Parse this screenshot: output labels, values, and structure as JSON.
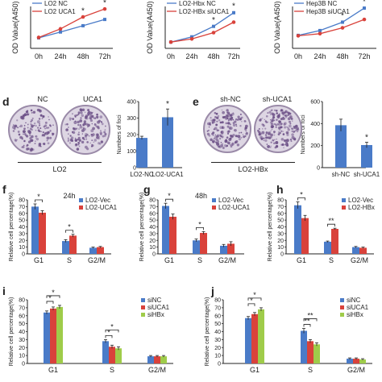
{
  "colors": {
    "blue": "#4a7bc8",
    "red": "#d9423b",
    "green": "#9fcc4a",
    "axis": "#222222",
    "plate_bg": "#ddd6e3",
    "plate_foci": "#6b4f86"
  },
  "panel_d": {
    "letter": "d",
    "plate_labels": [
      "NC",
      "UCA1"
    ],
    "group_label": "LO2"
  },
  "panel_e": {
    "letter": "e",
    "plate_labels": [
      "sh-NC",
      "sh-UCA1"
    ],
    "group_label": "LO2-HBx"
  },
  "chart_data": [
    {
      "id": "top-left",
      "type": "line",
      "ylabel": "OD Value(A450)",
      "categories": [
        "0h",
        "24h",
        "48h",
        "72h"
      ],
      "ylim": [
        0,
        2
      ],
      "series": [
        {
          "name": "LO2 NC",
          "color": "#4a7bc8",
          "values": [
            0.5,
            0.78,
            1.08,
            1.38
          ],
          "errors": [
            0.03,
            0.04,
            0.05,
            0.06
          ]
        },
        {
          "name": "LO2 UCA1",
          "color": "#d9423b",
          "values": [
            0.52,
            0.93,
            1.5,
            1.88
          ],
          "errors": [
            0.03,
            0.05,
            0.06,
            0.07
          ]
        }
      ],
      "stars": [
        "",
        "",
        "*",
        "*"
      ]
    },
    {
      "id": "top-middle",
      "type": "line",
      "ylabel": "OD Value(A450)",
      "categories": [
        "0h",
        "24h",
        "48h",
        "72h"
      ],
      "ylim": [
        0,
        2
      ],
      "series": [
        {
          "name": "LO2-Hbx NC",
          "color": "#4a7bc8",
          "values": [
            0.3,
            0.55,
            1.05,
            1.7
          ],
          "errors": [
            0.02,
            0.04,
            0.06,
            0.08
          ]
        },
        {
          "name": "LO2-HBx siUCA1",
          "color": "#d9423b",
          "values": [
            0.3,
            0.45,
            0.75,
            1.25
          ],
          "errors": [
            0.02,
            0.03,
            0.05,
            0.06
          ]
        }
      ],
      "stars": [
        "",
        "",
        "*",
        "*"
      ]
    },
    {
      "id": "top-right",
      "type": "line",
      "ylabel": "OD Value(A450)",
      "categories": [
        "0h",
        "24h",
        "48h",
        "72h"
      ],
      "ylim": [
        0,
        2
      ],
      "series": [
        {
          "name": "Hep3B NC",
          "color": "#4a7bc8",
          "values": [
            0.62,
            0.85,
            1.25,
            1.92
          ],
          "errors": [
            0.03,
            0.04,
            0.08,
            0.08
          ]
        },
        {
          "name": "Hep3B siUCA1",
          "color": "#d9423b",
          "values": [
            0.6,
            0.7,
            0.98,
            1.38
          ],
          "errors": [
            0.03,
            0.04,
            0.05,
            0.06
          ]
        }
      ],
      "stars": [
        "",
        "",
        "*",
        "*"
      ]
    },
    {
      "id": "d-bar",
      "type": "bar",
      "ylabel": "Numbers of foci",
      "categories": [
        "LO2-NC",
        "LO2-UCA1"
      ],
      "ylim": [
        0,
        400
      ],
      "yticks": [
        0,
        100,
        200,
        300,
        400
      ],
      "series": [
        {
          "name": "",
          "color": "#4a7bc8",
          "values": [
            180,
            305
          ],
          "errors": [
            10,
            50
          ]
        }
      ],
      "stars": [
        "",
        "*"
      ]
    },
    {
      "id": "e-bar",
      "type": "bar",
      "ylabel": "Numbers of foci",
      "categories": [
        "sh-NC",
        "sh-UCA1"
      ],
      "ylim": [
        0,
        600
      ],
      "yticks": [
        0,
        200,
        400,
        600
      ],
      "series": [
        {
          "name": "",
          "color": "#4a7bc8",
          "values": [
            385,
            205
          ],
          "errors": [
            55,
            25
          ]
        }
      ],
      "stars": [
        "",
        "*"
      ]
    },
    {
      "id": "f",
      "letter": "f",
      "type": "bar",
      "title": "24h",
      "ylabel": "Relative cell percentage(%)",
      "categories": [
        "G1",
        "S",
        "G2/M"
      ],
      "ylim": [
        0,
        80
      ],
      "yticks": [
        0,
        10,
        20,
        30,
        40,
        50,
        60,
        70,
        80
      ],
      "series": [
        {
          "name": "LO2-Vec",
          "color": "#4a7bc8",
          "values": [
            70,
            19,
            9
          ],
          "errors": [
            4,
            2,
            1
          ]
        },
        {
          "name": "LO2-UCA1",
          "color": "#d9423b",
          "values": [
            61,
            27,
            10
          ],
          "errors": [
            3,
            2,
            1
          ]
        }
      ],
      "brackets": [
        {
          "cat": 0,
          "label": "*"
        },
        {
          "cat": 1,
          "label": "*"
        }
      ]
    },
    {
      "id": "g",
      "letter": "g",
      "type": "bar",
      "title": "48h",
      "ylabel": "Relative cell percentage(%)",
      "categories": [
        "G1",
        "S",
        "G2/M"
      ],
      "ylim": [
        0,
        80
      ],
      "yticks": [
        0,
        10,
        20,
        30,
        40,
        50,
        60,
        70,
        80
      ],
      "series": [
        {
          "name": "LO2-Vec",
          "color": "#4a7bc8",
          "values": [
            71,
            20,
            12
          ],
          "errors": [
            4,
            2,
            2
          ]
        },
        {
          "name": "LO2-UCA1",
          "color": "#d9423b",
          "values": [
            55,
            31,
            15
          ],
          "errors": [
            4,
            2,
            3
          ]
        }
      ],
      "brackets": [
        {
          "cat": 0,
          "label": "*"
        },
        {
          "cat": 1,
          "label": "*"
        }
      ]
    },
    {
      "id": "h",
      "letter": "h",
      "type": "bar",
      "ylabel": "Relative cell percentage(%)",
      "categories": [
        "G1",
        "S",
        "G2/M"
      ],
      "ylim": [
        0,
        80
      ],
      "yticks": [
        0,
        10,
        20,
        30,
        40,
        50,
        60,
        70,
        80
      ],
      "series": [
        {
          "name": "LO2-Vec",
          "color": "#4a7bc8",
          "values": [
            72,
            18,
            10
          ],
          "errors": [
            5,
            1,
            1
          ]
        },
        {
          "name": "LO2-HBx",
          "color": "#d9423b",
          "values": [
            53,
            37,
            9
          ],
          "errors": [
            4,
            1,
            1
          ]
        }
      ],
      "brackets": [
        {
          "cat": 0,
          "label": "*"
        },
        {
          "cat": 1,
          "label": "**"
        }
      ]
    },
    {
      "id": "i",
      "letter": "i",
      "type": "bar",
      "ylabel": "Relative cell percentage(%)",
      "categories": [
        "G1",
        "S",
        "G2/M"
      ],
      "ylim": [
        0,
        80
      ],
      "yticks": [
        0,
        10,
        20,
        30,
        40,
        50,
        60,
        70,
        80
      ],
      "series": [
        {
          "name": "siNC",
          "color": "#4a7bc8",
          "values": [
            64,
            28,
            9
          ],
          "errors": [
            2,
            2,
            1
          ]
        },
        {
          "name": "siUCA1",
          "color": "#d9423b",
          "values": [
            69,
            21,
            9
          ],
          "errors": [
            2,
            2,
            1
          ]
        },
        {
          "name": "siHBx",
          "color": "#9fcc4a",
          "values": [
            71,
            19,
            9
          ],
          "errors": [
            2,
            2,
            1
          ]
        }
      ],
      "brackets": [
        {
          "cat": 0,
          "from": 0,
          "to": 1,
          "label": "*"
        },
        {
          "cat": 0,
          "from": 0,
          "to": 2,
          "label": "*"
        },
        {
          "cat": 1,
          "from": 0,
          "to": 1,
          "label": "*"
        },
        {
          "cat": 1,
          "from": 0,
          "to": 2,
          "label": "*"
        }
      ]
    },
    {
      "id": "j",
      "letter": "j",
      "type": "bar",
      "ylabel": "Relative cell percentage(%)",
      "categories": [
        "G1",
        "S",
        "G2/M"
      ],
      "ylim": [
        0,
        80
      ],
      "yticks": [
        0,
        10,
        20,
        30,
        40,
        50,
        60,
        70,
        80
      ],
      "series": [
        {
          "name": "siNC",
          "color": "#4a7bc8",
          "values": [
            57,
            41,
            6
          ],
          "errors": [
            2,
            3,
            1
          ]
        },
        {
          "name": "siUCA1",
          "color": "#d9423b",
          "values": [
            62,
            28,
            6
          ],
          "errors": [
            2,
            2,
            1
          ]
        },
        {
          "name": "siHBx",
          "color": "#9fcc4a",
          "values": [
            68,
            24,
            5
          ],
          "errors": [
            2,
            2,
            1
          ]
        }
      ],
      "brackets": [
        {
          "cat": 0,
          "from": 0,
          "to": 1,
          "label": "*"
        },
        {
          "cat": 0,
          "from": 0,
          "to": 2,
          "label": "*"
        },
        {
          "cat": 1,
          "from": 0,
          "to": 1,
          "label": "**"
        },
        {
          "cat": 1,
          "from": 0,
          "to": 2,
          "label": "**"
        }
      ]
    }
  ]
}
